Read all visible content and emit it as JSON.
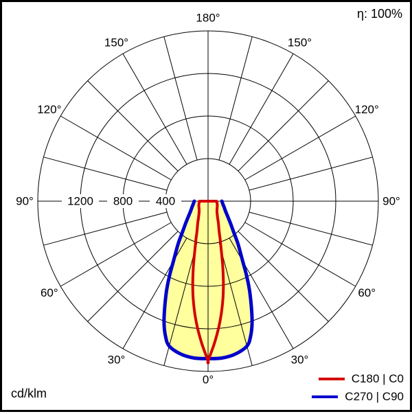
{
  "header": {
    "efficiency_label": "η: 100%"
  },
  "footer": {
    "unit_label": "cd/klm"
  },
  "chart_data": {
    "type": "line",
    "polar": true,
    "title": "",
    "units": "cd/klm",
    "angle_step_deg": 15,
    "angle_label_degrees": [
      0,
      30,
      60,
      90,
      120,
      150,
      180
    ],
    "angle_labels": [
      "0°",
      "30°",
      "60°",
      "90°",
      "120°",
      "150°",
      "180°"
    ],
    "radial_ticks": [
      400,
      800,
      1200
    ],
    "radial_tick_labels": [
      "400",
      "800",
      "1200"
    ],
    "r_max": 1600,
    "grid": true,
    "legend_position": "bottom-right",
    "colors": {
      "grid": "#000000",
      "beam_fill": "#ffff9e"
    },
    "series": [
      {
        "name": "C180 | C0",
        "color": "#d40000",
        "symmetric": true,
        "gamma": [
          0,
          2.5,
          5,
          7.5,
          10,
          12.5,
          15,
          17.5,
          20,
          25,
          30,
          35,
          40,
          50,
          60,
          70,
          80,
          90
        ],
        "values": [
          1500,
          1340,
          1180,
          1010,
          830,
          640,
          480,
          380,
          305,
          230,
          180,
          150,
          130,
          110,
          100,
          92,
          85,
          80
        ]
      },
      {
        "name": "C270 | C90",
        "color": "#0000cc",
        "symmetric": true,
        "fill": "#ffff9e",
        "gamma": [
          0,
          5,
          10,
          15,
          17.5,
          20,
          22.5,
          25,
          27.5,
          30,
          35,
          40,
          45,
          50,
          55,
          60,
          70,
          80,
          90
        ],
        "values": [
          1480,
          1480,
          1460,
          1410,
          1330,
          1210,
          1060,
          920,
          780,
          650,
          490,
          370,
          300,
          250,
          215,
          190,
          160,
          140,
          130
        ]
      }
    ]
  }
}
